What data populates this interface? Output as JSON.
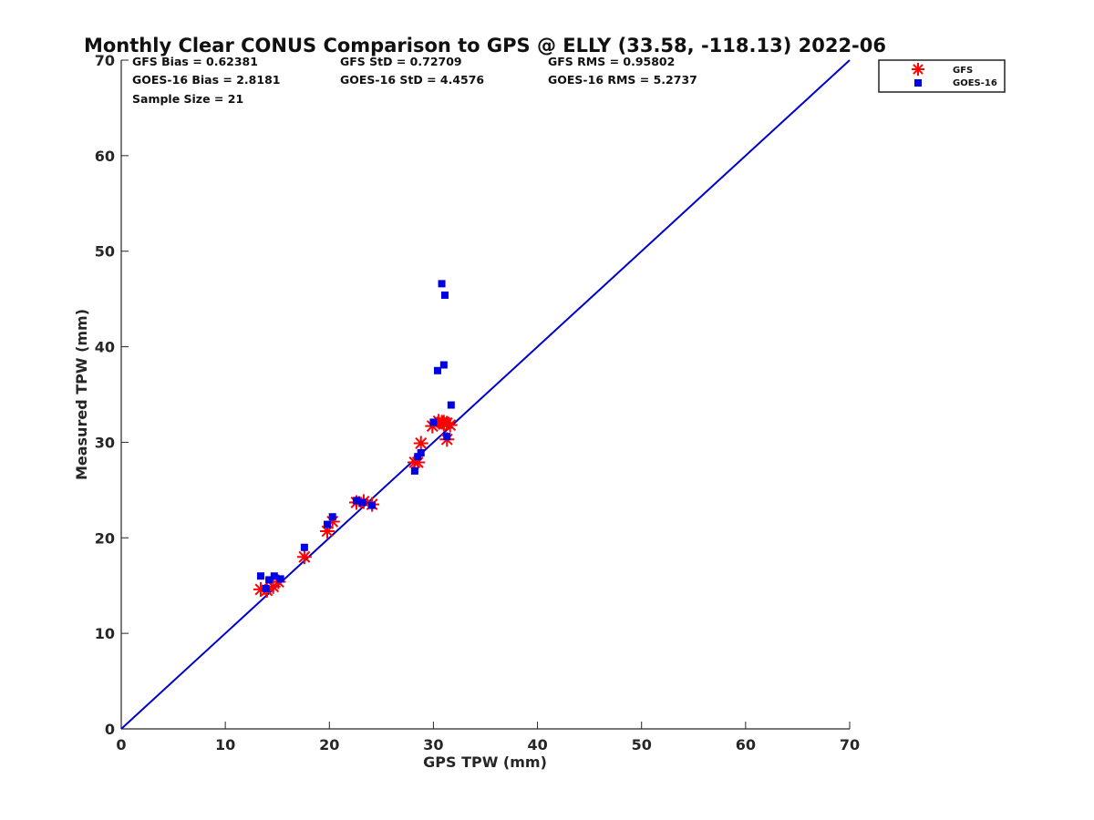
{
  "chart_data": {
    "type": "scatter",
    "title": "Monthly Clear CONUS Comparison to GPS @ ELLY (33.58, -118.13) 2022-06",
    "xlabel": "GPS TPW (mm)",
    "ylabel": "Measured TPW (mm)",
    "xlim": [
      0,
      70
    ],
    "ylim": [
      0,
      70
    ],
    "xticks": [
      0,
      10,
      20,
      30,
      40,
      50,
      60,
      70
    ],
    "yticks": [
      0,
      10,
      20,
      30,
      40,
      50,
      60,
      70
    ],
    "grid": false,
    "legend_position": "top-right, outside plot",
    "reference_line": {
      "x": [
        0,
        70
      ],
      "y": [
        0,
        70
      ],
      "color": "#0000cc"
    },
    "stats": [
      [
        "GFS Bias = 0.62381",
        "GFS StD = 0.72709",
        "GFS RMS = 0.95802"
      ],
      [
        "GOES-16 Bias = 2.8181",
        "GOES-16 StD = 4.4576",
        "GOES-16 RMS = 5.2737"
      ],
      [
        "Sample Size = 21",
        "",
        ""
      ]
    ],
    "series": [
      {
        "name": "GFS",
        "marker": "asterisk",
        "color": "#ff0000",
        "x": [
          13.4,
          14.0,
          14.6,
          15.1,
          17.6,
          19.8,
          20.3,
          22.6,
          23.3,
          24.1,
          28.2,
          28.5,
          28.8,
          29.9,
          30.5,
          30.8,
          31.0,
          31.3,
          31.6,
          31.3,
          31.0
        ],
        "y": [
          14.6,
          14.5,
          14.9,
          15.4,
          18.0,
          20.7,
          21.7,
          23.7,
          23.8,
          23.5,
          27.9,
          27.9,
          29.9,
          31.7,
          32.2,
          32.1,
          32.1,
          32.0,
          31.8,
          30.3,
          31.9
        ]
      },
      {
        "name": "GOES-16",
        "marker": "square",
        "color": "#0000e6",
        "x": [
          13.4,
          13.9,
          14.2,
          14.7,
          15.3,
          17.6,
          19.8,
          20.3,
          22.6,
          23.2,
          24.1,
          28.2,
          28.5,
          28.8,
          30.0,
          30.4,
          30.8,
          31.1,
          31.0,
          31.7,
          31.3
        ],
        "y": [
          16.0,
          14.7,
          15.6,
          16.0,
          15.7,
          19.0,
          21.4,
          22.2,
          23.9,
          23.7,
          23.4,
          27.0,
          28.5,
          28.9,
          32.1,
          37.5,
          46.6,
          45.4,
          38.1,
          33.9,
          30.6
        ]
      }
    ]
  }
}
